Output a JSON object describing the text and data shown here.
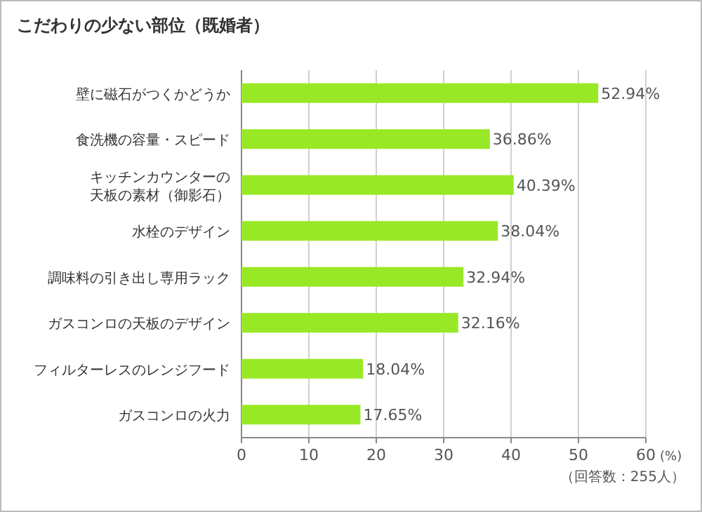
{
  "chart_data": {
    "type": "bar",
    "orientation": "horizontal",
    "title": "こだわりの少ない部位（既婚者）",
    "categories": [
      "壁に磁石がつくかどうか",
      "食洗機の容量・スピード",
      "キッチンカウンターの天板の素材（御影石）",
      "水栓のデザイン",
      "調味料の引き出し専用ラック",
      "ガスコンロの天板のデザイン",
      "フィルターレスのレンジフード",
      "ガスコンロの火力"
    ],
    "values": [
      52.94,
      36.86,
      40.39,
      38.04,
      32.94,
      32.16,
      18.04,
      17.65
    ],
    "value_labels": [
      "52.94%",
      "36.86%",
      "40.39%",
      "38.04%",
      "32.94%",
      "32.16%",
      "18.04%",
      "17.65%"
    ],
    "color": "#99e826",
    "xlim": [
      0,
      60
    ],
    "xticks": [
      0,
      10,
      20,
      30,
      40,
      50,
      60
    ],
    "xlabel": "(%)",
    "grid": "x",
    "annotations": [
      "（回答数：255人）"
    ]
  }
}
